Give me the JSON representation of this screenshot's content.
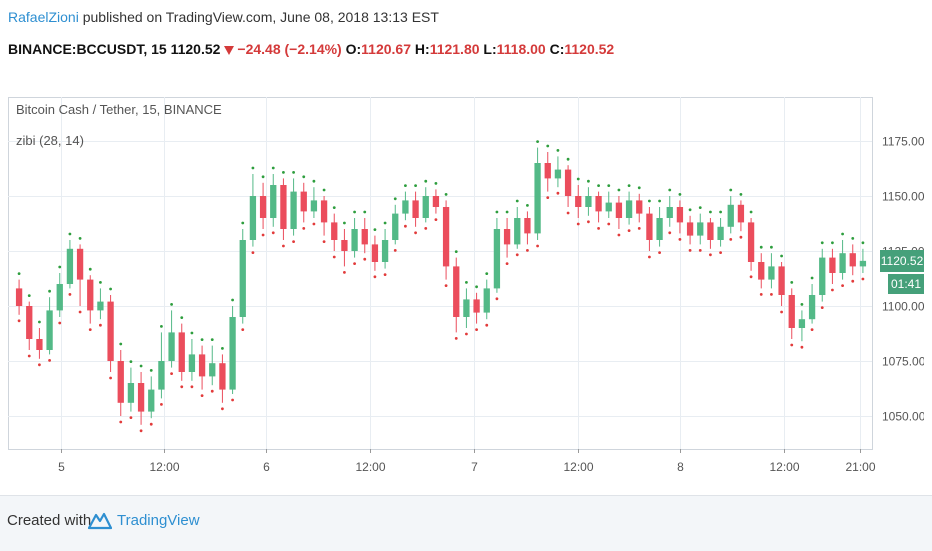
{
  "header": {
    "user": "RafaelZioni",
    "published": " published on TradingView.com, June 08, 2018 13:13 EST",
    "symbol": "BINANCE:BCCUSDT, 15",
    "last": "1120.52",
    "change": "−24.48 (−2.14%)",
    "o_label": "O:",
    "o_value": "1120.67",
    "h_label": "H:",
    "h_value": "1121.80",
    "l_label": "L:",
    "l_value": "1118.00",
    "c_label": "C:",
    "c_value": "1120.52"
  },
  "legend": {
    "series_title": "Bitcoin Cash / Tether, 15, BINANCE",
    "indicator": "zibi (28, 14)"
  },
  "price_tag": "1120.52",
  "time_tag": "01:41",
  "footer": {
    "created": "Created with",
    "brand": "TradingView"
  },
  "colors": {
    "up": "#53b987",
    "down": "#eb4d5c",
    "marker_up": "#2e9e3e",
    "marker_down": "#e23b3b",
    "grid": "#e8edf2",
    "axis": "#555555",
    "brand": "#2e8fd1"
  },
  "chart_data": {
    "type": "candlestick",
    "ylim": [
      1035,
      1195
    ],
    "y_ticks": [
      1050,
      1075,
      1100,
      1125,
      1150,
      1175
    ],
    "y_tick_labels": [
      "1050.00",
      "1075.00",
      "1100.00",
      "1125.00",
      "1150.00",
      "1175.00"
    ],
    "x_ticks": [
      "5",
      "12:00",
      "6",
      "12:00",
      "7",
      "12:00",
      "8",
      "12:00",
      "21:00"
    ],
    "current_price": 1120.52,
    "candles": [
      {
        "o": 1108,
        "c": 1100,
        "h": 1112,
        "l": 1096
      },
      {
        "o": 1100,
        "c": 1085,
        "h": 1102,
        "l": 1080
      },
      {
        "o": 1085,
        "c": 1080,
        "h": 1090,
        "l": 1076
      },
      {
        "o": 1080,
        "c": 1098,
        "h": 1104,
        "l": 1078
      },
      {
        "o": 1098,
        "c": 1110,
        "h": 1115,
        "l": 1095
      },
      {
        "o": 1110,
        "c": 1126,
        "h": 1130,
        "l": 1108
      },
      {
        "o": 1126,
        "c": 1112,
        "h": 1128,
        "l": 1100
      },
      {
        "o": 1112,
        "c": 1098,
        "h": 1114,
        "l": 1092
      },
      {
        "o": 1098,
        "c": 1102,
        "h": 1108,
        "l": 1094
      },
      {
        "o": 1102,
        "c": 1075,
        "h": 1105,
        "l": 1070
      },
      {
        "o": 1075,
        "c": 1056,
        "h": 1080,
        "l": 1050
      },
      {
        "o": 1056,
        "c": 1065,
        "h": 1072,
        "l": 1052
      },
      {
        "o": 1065,
        "c": 1052,
        "h": 1070,
        "l": 1046
      },
      {
        "o": 1052,
        "c": 1062,
        "h": 1068,
        "l": 1049
      },
      {
        "o": 1062,
        "c": 1075,
        "h": 1088,
        "l": 1058
      },
      {
        "o": 1075,
        "c": 1088,
        "h": 1098,
        "l": 1072
      },
      {
        "o": 1088,
        "c": 1070,
        "h": 1092,
        "l": 1066
      },
      {
        "o": 1070,
        "c": 1078,
        "h": 1085,
        "l": 1066
      },
      {
        "o": 1078,
        "c": 1068,
        "h": 1082,
        "l": 1062
      },
      {
        "o": 1068,
        "c": 1074,
        "h": 1082,
        "l": 1064
      },
      {
        "o": 1074,
        "c": 1062,
        "h": 1078,
        "l": 1056
      },
      {
        "o": 1062,
        "c": 1095,
        "h": 1100,
        "l": 1060
      },
      {
        "o": 1095,
        "c": 1130,
        "h": 1135,
        "l": 1092
      },
      {
        "o": 1130,
        "c": 1150,
        "h": 1160,
        "l": 1127
      },
      {
        "o": 1150,
        "c": 1140,
        "h": 1156,
        "l": 1135
      },
      {
        "o": 1140,
        "c": 1155,
        "h": 1160,
        "l": 1136
      },
      {
        "o": 1155,
        "c": 1135,
        "h": 1158,
        "l": 1130
      },
      {
        "o": 1135,
        "c": 1152,
        "h": 1158,
        "l": 1132
      },
      {
        "o": 1152,
        "c": 1143,
        "h": 1156,
        "l": 1138
      },
      {
        "o": 1143,
        "c": 1148,
        "h": 1154,
        "l": 1140
      },
      {
        "o": 1148,
        "c": 1138,
        "h": 1150,
        "l": 1132
      },
      {
        "o": 1138,
        "c": 1130,
        "h": 1142,
        "l": 1125
      },
      {
        "o": 1130,
        "c": 1125,
        "h": 1135,
        "l": 1118
      },
      {
        "o": 1125,
        "c": 1135,
        "h": 1140,
        "l": 1122
      },
      {
        "o": 1135,
        "c": 1128,
        "h": 1140,
        "l": 1124
      },
      {
        "o": 1128,
        "c": 1120,
        "h": 1132,
        "l": 1116
      },
      {
        "o": 1120,
        "c": 1130,
        "h": 1135,
        "l": 1117
      },
      {
        "o": 1130,
        "c": 1142,
        "h": 1146,
        "l": 1128
      },
      {
        "o": 1142,
        "c": 1148,
        "h": 1152,
        "l": 1139
      },
      {
        "o": 1148,
        "c": 1140,
        "h": 1152,
        "l": 1136
      },
      {
        "o": 1140,
        "c": 1150,
        "h": 1154,
        "l": 1138
      },
      {
        "o": 1150,
        "c": 1145,
        "h": 1153,
        "l": 1142
      },
      {
        "o": 1145,
        "c": 1118,
        "h": 1148,
        "l": 1112
      },
      {
        "o": 1118,
        "c": 1095,
        "h": 1122,
        "l": 1088
      },
      {
        "o": 1095,
        "c": 1103,
        "h": 1108,
        "l": 1090
      },
      {
        "o": 1103,
        "c": 1097,
        "h": 1106,
        "l": 1092
      },
      {
        "o": 1097,
        "c": 1108,
        "h": 1112,
        "l": 1094
      },
      {
        "o": 1108,
        "c": 1135,
        "h": 1140,
        "l": 1106
      },
      {
        "o": 1135,
        "c": 1128,
        "h": 1140,
        "l": 1122
      },
      {
        "o": 1128,
        "c": 1140,
        "h": 1145,
        "l": 1126
      },
      {
        "o": 1140,
        "c": 1133,
        "h": 1143,
        "l": 1128
      },
      {
        "o": 1133,
        "c": 1165,
        "h": 1172,
        "l": 1130
      },
      {
        "o": 1165,
        "c": 1158,
        "h": 1170,
        "l": 1152
      },
      {
        "o": 1158,
        "c": 1162,
        "h": 1168,
        "l": 1154
      },
      {
        "o": 1162,
        "c": 1150,
        "h": 1164,
        "l": 1145
      },
      {
        "o": 1150,
        "c": 1145,
        "h": 1155,
        "l": 1140
      },
      {
        "o": 1145,
        "c": 1150,
        "h": 1154,
        "l": 1141
      },
      {
        "o": 1150,
        "c": 1143,
        "h": 1152,
        "l": 1138
      },
      {
        "o": 1143,
        "c": 1147,
        "h": 1152,
        "l": 1140
      },
      {
        "o": 1147,
        "c": 1140,
        "h": 1150,
        "l": 1135
      },
      {
        "o": 1140,
        "c": 1148,
        "h": 1152,
        "l": 1137
      },
      {
        "o": 1148,
        "c": 1142,
        "h": 1151,
        "l": 1138
      },
      {
        "o": 1142,
        "c": 1130,
        "h": 1145,
        "l": 1125
      },
      {
        "o": 1130,
        "c": 1140,
        "h": 1145,
        "l": 1127
      },
      {
        "o": 1140,
        "c": 1145,
        "h": 1150,
        "l": 1136
      },
      {
        "o": 1145,
        "c": 1138,
        "h": 1148,
        "l": 1133
      },
      {
        "o": 1138,
        "c": 1132,
        "h": 1141,
        "l": 1128
      },
      {
        "o": 1132,
        "c": 1138,
        "h": 1142,
        "l": 1128
      },
      {
        "o": 1138,
        "c": 1130,
        "h": 1140,
        "l": 1126
      },
      {
        "o": 1130,
        "c": 1136,
        "h": 1140,
        "l": 1127
      },
      {
        "o": 1136,
        "c": 1146,
        "h": 1150,
        "l": 1133
      },
      {
        "o": 1146,
        "c": 1138,
        "h": 1148,
        "l": 1134
      },
      {
        "o": 1138,
        "c": 1120,
        "h": 1140,
        "l": 1116
      },
      {
        "o": 1120,
        "c": 1112,
        "h": 1124,
        "l": 1108
      },
      {
        "o": 1112,
        "c": 1118,
        "h": 1124,
        "l": 1108
      },
      {
        "o": 1118,
        "c": 1105,
        "h": 1120,
        "l": 1100
      },
      {
        "o": 1105,
        "c": 1090,
        "h": 1108,
        "l": 1085
      },
      {
        "o": 1090,
        "c": 1094,
        "h": 1098,
        "l": 1084
      },
      {
        "o": 1094,
        "c": 1105,
        "h": 1110,
        "l": 1092
      },
      {
        "o": 1105,
        "c": 1122,
        "h": 1126,
        "l": 1102
      },
      {
        "o": 1122,
        "c": 1115,
        "h": 1126,
        "l": 1110
      },
      {
        "o": 1115,
        "c": 1124,
        "h": 1130,
        "l": 1112
      },
      {
        "o": 1124,
        "c": 1118,
        "h": 1128,
        "l": 1114
      },
      {
        "o": 1118,
        "c": 1120.52,
        "h": 1126,
        "l": 1115
      }
    ]
  }
}
